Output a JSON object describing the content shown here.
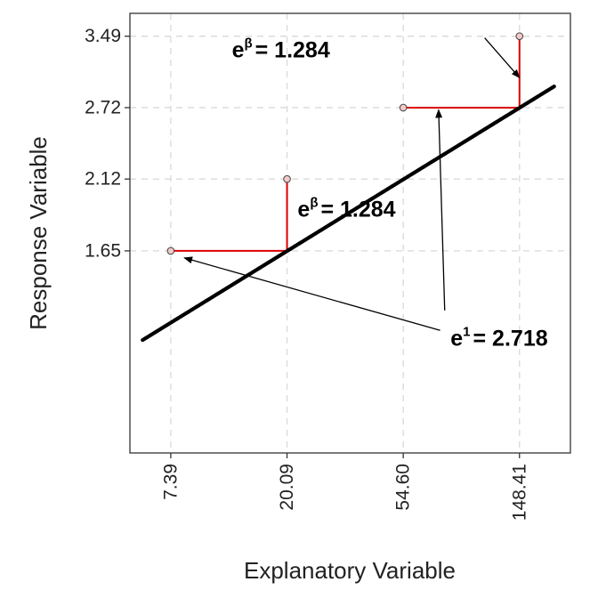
{
  "chart_data": {
    "type": "line",
    "title": "",
    "xlabel": "Explanatory Variable",
    "ylabel": "Response Variable",
    "x_scale": "log",
    "y_scale": "log",
    "xlim": [
      5.2,
      230
    ],
    "ylim": [
      0.815,
      3.78
    ],
    "x_ticks": [
      7.39,
      20.09,
      54.6,
      148.41
    ],
    "x_tick_labels": [
      "7.39",
      "20.09",
      "54.60",
      "148.41"
    ],
    "y_ticks": [
      1.65,
      2.12,
      2.72,
      3.49
    ],
    "y_tick_labels": [
      "1.65",
      "2.12",
      "2.72",
      "3.49"
    ],
    "grid": true,
    "legend": "none",
    "curve": {
      "formula": "y = 0.7788 * x^0.25",
      "coefficient": 0.7788,
      "exponent": 0.25,
      "x_start": 5.8,
      "x_end": 200,
      "color": "#000000"
    },
    "points": [
      {
        "x": 7.39,
        "y": 1.65
      },
      {
        "x": 20.09,
        "y": 2.12
      },
      {
        "x": 54.6,
        "y": 2.72
      },
      {
        "x": 148.41,
        "y": 3.49
      }
    ],
    "segments": [
      {
        "from": [
          7.39,
          1.65
        ],
        "to": [
          20.09,
          1.65
        ]
      },
      {
        "from": [
          20.09,
          1.65
        ],
        "to": [
          20.09,
          2.12
        ]
      },
      {
        "from": [
          54.6,
          2.72
        ],
        "to": [
          148.41,
          2.72
        ]
      },
      {
        "from": [
          148.41,
          2.72
        ],
        "to": [
          148.41,
          3.49
        ]
      }
    ],
    "segment_color": "#dd0000",
    "point_fill": "#f3c9c9",
    "annotations": [
      {
        "base": "e",
        "sup": "β",
        "text": "= 1.284",
        "x": 12.5,
        "y": 3.24,
        "arrow_from": [
          110,
          3.47
        ],
        "arrow_to": [
          148.41,
          3.02
        ]
      },
      {
        "base": "e",
        "sup": "β",
        "text": "= 1.284",
        "x": 22.0,
        "y": 1.86
      },
      {
        "base": "e",
        "sup": "1",
        "text": "= 2.718",
        "x": 82,
        "y": 1.185,
        "arrow_from": [
          75,
          1.25
        ],
        "arrow_to": [
          8.3,
          1.61
        ]
      },
      {
        "base": "",
        "sup": "",
        "text": "",
        "arrow_from": [
          78,
          1.34
        ],
        "arrow_to": [
          74,
          2.7
        ]
      }
    ]
  }
}
